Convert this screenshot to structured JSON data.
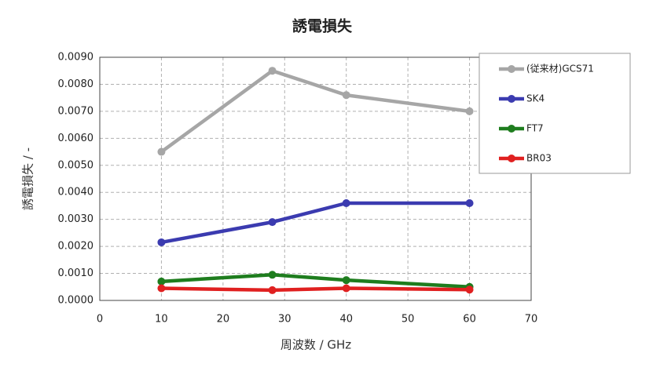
{
  "chart_data": {
    "type": "line",
    "title": "誘電損失",
    "x_label": "周波数 / GHz",
    "y_label": "誘電損失 / -",
    "x": [
      10,
      28,
      40,
      60
    ],
    "series": [
      {
        "name": "(従来材)GCS71",
        "color": "#a6a6a6",
        "values": [
          0.0055,
          0.0085,
          0.0076,
          0.007
        ]
      },
      {
        "name": "SK4",
        "color": "#3b3bb0",
        "values": [
          0.00215,
          0.0029,
          0.0036,
          0.0036
        ]
      },
      {
        "name": "FT7",
        "color": "#1e7d1e",
        "values": [
          0.0007,
          0.00095,
          0.00075,
          0.0005
        ]
      },
      {
        "name": "BR03",
        "color": "#e02020",
        "values": [
          0.00045,
          0.00038,
          0.00045,
          0.0004
        ]
      }
    ],
    "xlim": [
      0,
      70
    ],
    "xticks": [
      0,
      10,
      20,
      30,
      40,
      50,
      60,
      70
    ],
    "ylim": [
      0,
      0.009
    ],
    "yticks": [
      {
        "value": 0,
        "label": "0.0000"
      },
      {
        "value": 0.001,
        "label": "0.0010"
      },
      {
        "value": 0.002,
        "label": "0.0020"
      },
      {
        "value": 0.003,
        "label": "0.0030"
      },
      {
        "value": 0.004,
        "label": "0.0040"
      },
      {
        "value": 0.005,
        "label": "0.0050"
      },
      {
        "value": 0.006,
        "label": "0.0060"
      },
      {
        "value": 0.007,
        "label": "0.0070"
      },
      {
        "value": 0.008,
        "label": "0.0080"
      },
      {
        "value": 0.009,
        "label": "0.0090"
      }
    ],
    "grid": true,
    "legend": "upper right"
  }
}
